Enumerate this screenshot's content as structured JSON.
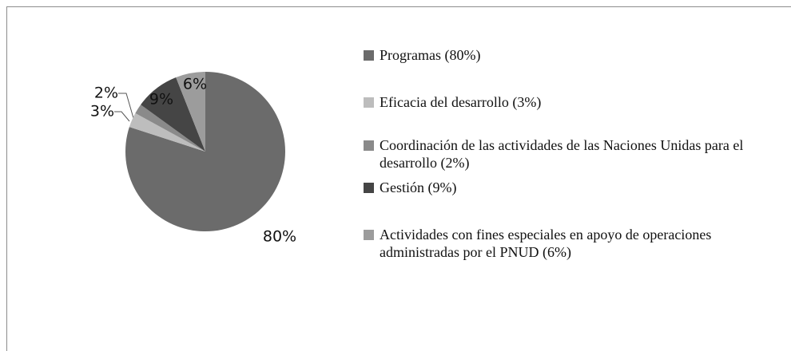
{
  "chart_data": {
    "type": "pie",
    "categories": [
      "Programas (80%)",
      "Eficacia del desarrollo (3%)",
      "Coordinación de las actividades de las Naciones Unidas para el desarrollo (2%)",
      "Gestión (9%)",
      "Actividades con fines especiales en apoyo de operaciones administradas por el PNUD (6%)"
    ],
    "values": [
      80,
      3,
      2,
      9,
      6
    ],
    "value_labels": [
      "80%",
      "3%",
      "2%",
      "9%",
      "6%"
    ],
    "colors": [
      "#6b6b6b",
      "#bdbdbd",
      "#8a8a8a",
      "#454545",
      "#9c9c9c"
    ],
    "legend": "right"
  }
}
